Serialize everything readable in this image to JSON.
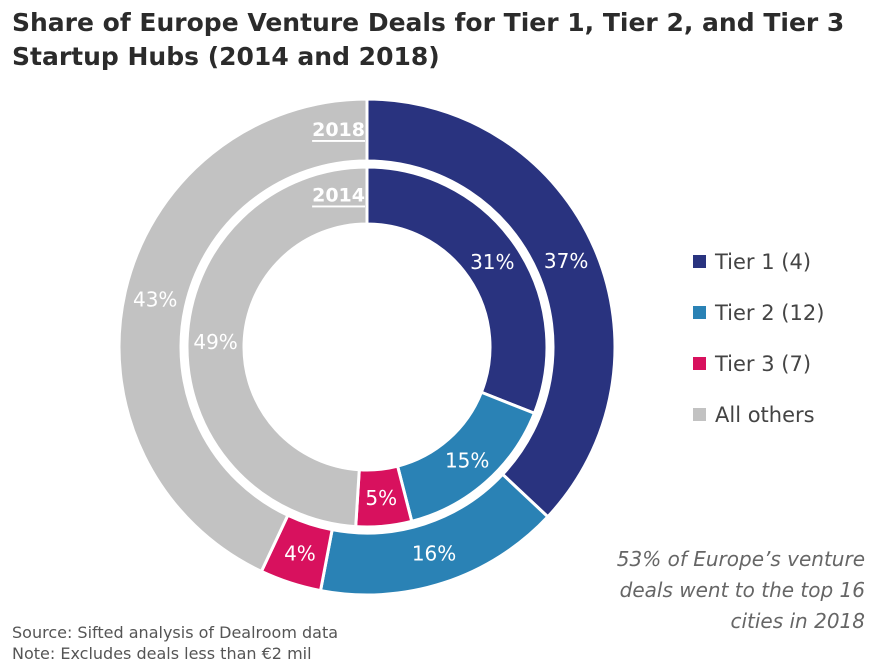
{
  "chart_data": {
    "type": "pie",
    "title": "Share of Europe Venture Deals for Tier 1, Tier 2, and Tier 3 Startup Hubs (2014 and 2018)",
    "categories": [
      "Tier 1 (4)",
      "Tier 2 (12)",
      "Tier 3 (7)",
      "All others"
    ],
    "series": [
      {
        "name": "2018",
        "ring": "outer",
        "values": [
          37,
          16,
          4,
          43
        ]
      },
      {
        "name": "2014",
        "ring": "inner",
        "values": [
          31,
          15,
          5,
          49
        ]
      }
    ],
    "unit": "%",
    "legend_position": "right",
    "colors": [
      "#29337f",
      "#2a82b5",
      "#d8115e",
      "#c2c2c2"
    ],
    "label_colors": [
      "#ffffff",
      "#ffffff",
      "#ffffff",
      "#ffffff"
    ]
  },
  "annotation": [
    "53% of Europe’s venture",
    "deals went to the top 16",
    "cities in 2018"
  ],
  "source": [
    "Source: Sifted analysis of Dealroom data",
    "Note: Excludes deals less than €2 mil"
  ]
}
